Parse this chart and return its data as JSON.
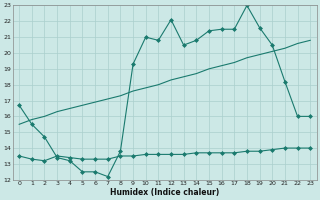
{
  "xlabel": "Humidex (Indice chaleur)",
  "xlim": [
    -0.5,
    23.5
  ],
  "ylim": [
    12,
    23
  ],
  "yticks": [
    12,
    13,
    14,
    15,
    16,
    17,
    18,
    19,
    20,
    21,
    22,
    23
  ],
  "xticks": [
    0,
    1,
    2,
    3,
    4,
    5,
    6,
    7,
    8,
    9,
    10,
    11,
    12,
    13,
    14,
    15,
    16,
    17,
    18,
    19,
    20,
    21,
    22,
    23
  ],
  "color": "#1a7a6e",
  "bg_color": "#cce8e6",
  "grid_color": "#aacfcd",
  "line1_x": [
    0,
    1,
    2,
    3,
    4,
    5,
    6,
    7,
    8,
    9,
    10,
    11,
    12,
    13,
    14,
    15,
    16,
    17,
    18,
    19,
    20,
    21,
    22,
    23
  ],
  "line1_y": [
    16.7,
    15.5,
    14.7,
    13.4,
    13.2,
    12.5,
    12.5,
    12.2,
    13.8,
    19.3,
    21.0,
    20.8,
    22.1,
    20.5,
    20.8,
    21.4,
    21.5,
    21.5,
    23.0,
    21.6,
    20.5,
    18.2,
    16.0,
    16.0
  ],
  "line2_x": [
    0,
    1,
    2,
    3,
    4,
    5,
    6,
    7,
    8,
    9,
    10,
    11,
    12,
    13,
    14,
    15,
    16,
    17,
    18,
    19,
    20,
    21,
    22,
    23
  ],
  "line2_y": [
    15.5,
    15.8,
    16.0,
    16.3,
    16.5,
    16.7,
    16.9,
    17.1,
    17.3,
    17.6,
    17.8,
    18.0,
    18.3,
    18.5,
    18.7,
    19.0,
    19.2,
    19.4,
    19.7,
    19.9,
    20.1,
    20.3,
    20.6,
    20.8
  ],
  "line3_x": [
    0,
    1,
    2,
    3,
    4,
    5,
    6,
    7,
    8,
    9,
    10,
    11,
    12,
    13,
    14,
    15,
    16,
    17,
    18,
    19,
    20,
    21,
    22,
    23
  ],
  "line3_y": [
    13.5,
    13.3,
    13.2,
    13.5,
    13.4,
    13.3,
    13.3,
    13.3,
    13.5,
    13.5,
    13.6,
    13.6,
    13.6,
    13.6,
    13.7,
    13.7,
    13.7,
    13.7,
    13.8,
    13.8,
    13.9,
    14.0,
    14.0,
    14.0
  ]
}
